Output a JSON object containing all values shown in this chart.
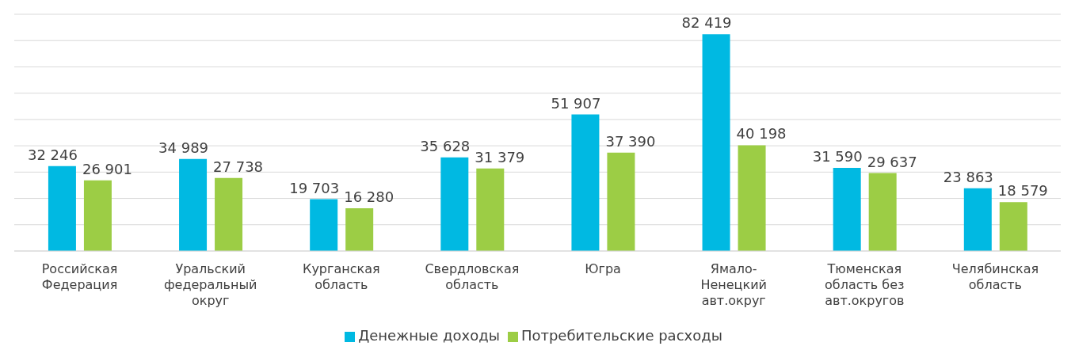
{
  "chart_data": {
    "type": "bar",
    "categories": [
      "Российская Федерация",
      "Уральский федеральный округ",
      "Курганская область",
      "Свердловская область",
      "Югра",
      "Ямало-Ненецкий авт.округ",
      "Тюменская область без авт.округов",
      "Челябинская область"
    ],
    "series": [
      {
        "name": "Денежные доходы",
        "color": "#00b9e2",
        "values": [
          32246,
          34989,
          19703,
          35628,
          51907,
          82419,
          31590,
          23863
        ]
      },
      {
        "name": "Потребительские расходы",
        "color": "#9ccd45",
        "values": [
          26901,
          27738,
          16280,
          31379,
          37390,
          40198,
          29637,
          18579
        ]
      }
    ],
    "ylim": [
      0,
      90000
    ],
    "grid": "y",
    "legend": "bottom",
    "data_labels": true,
    "tick_labels": "x"
  }
}
